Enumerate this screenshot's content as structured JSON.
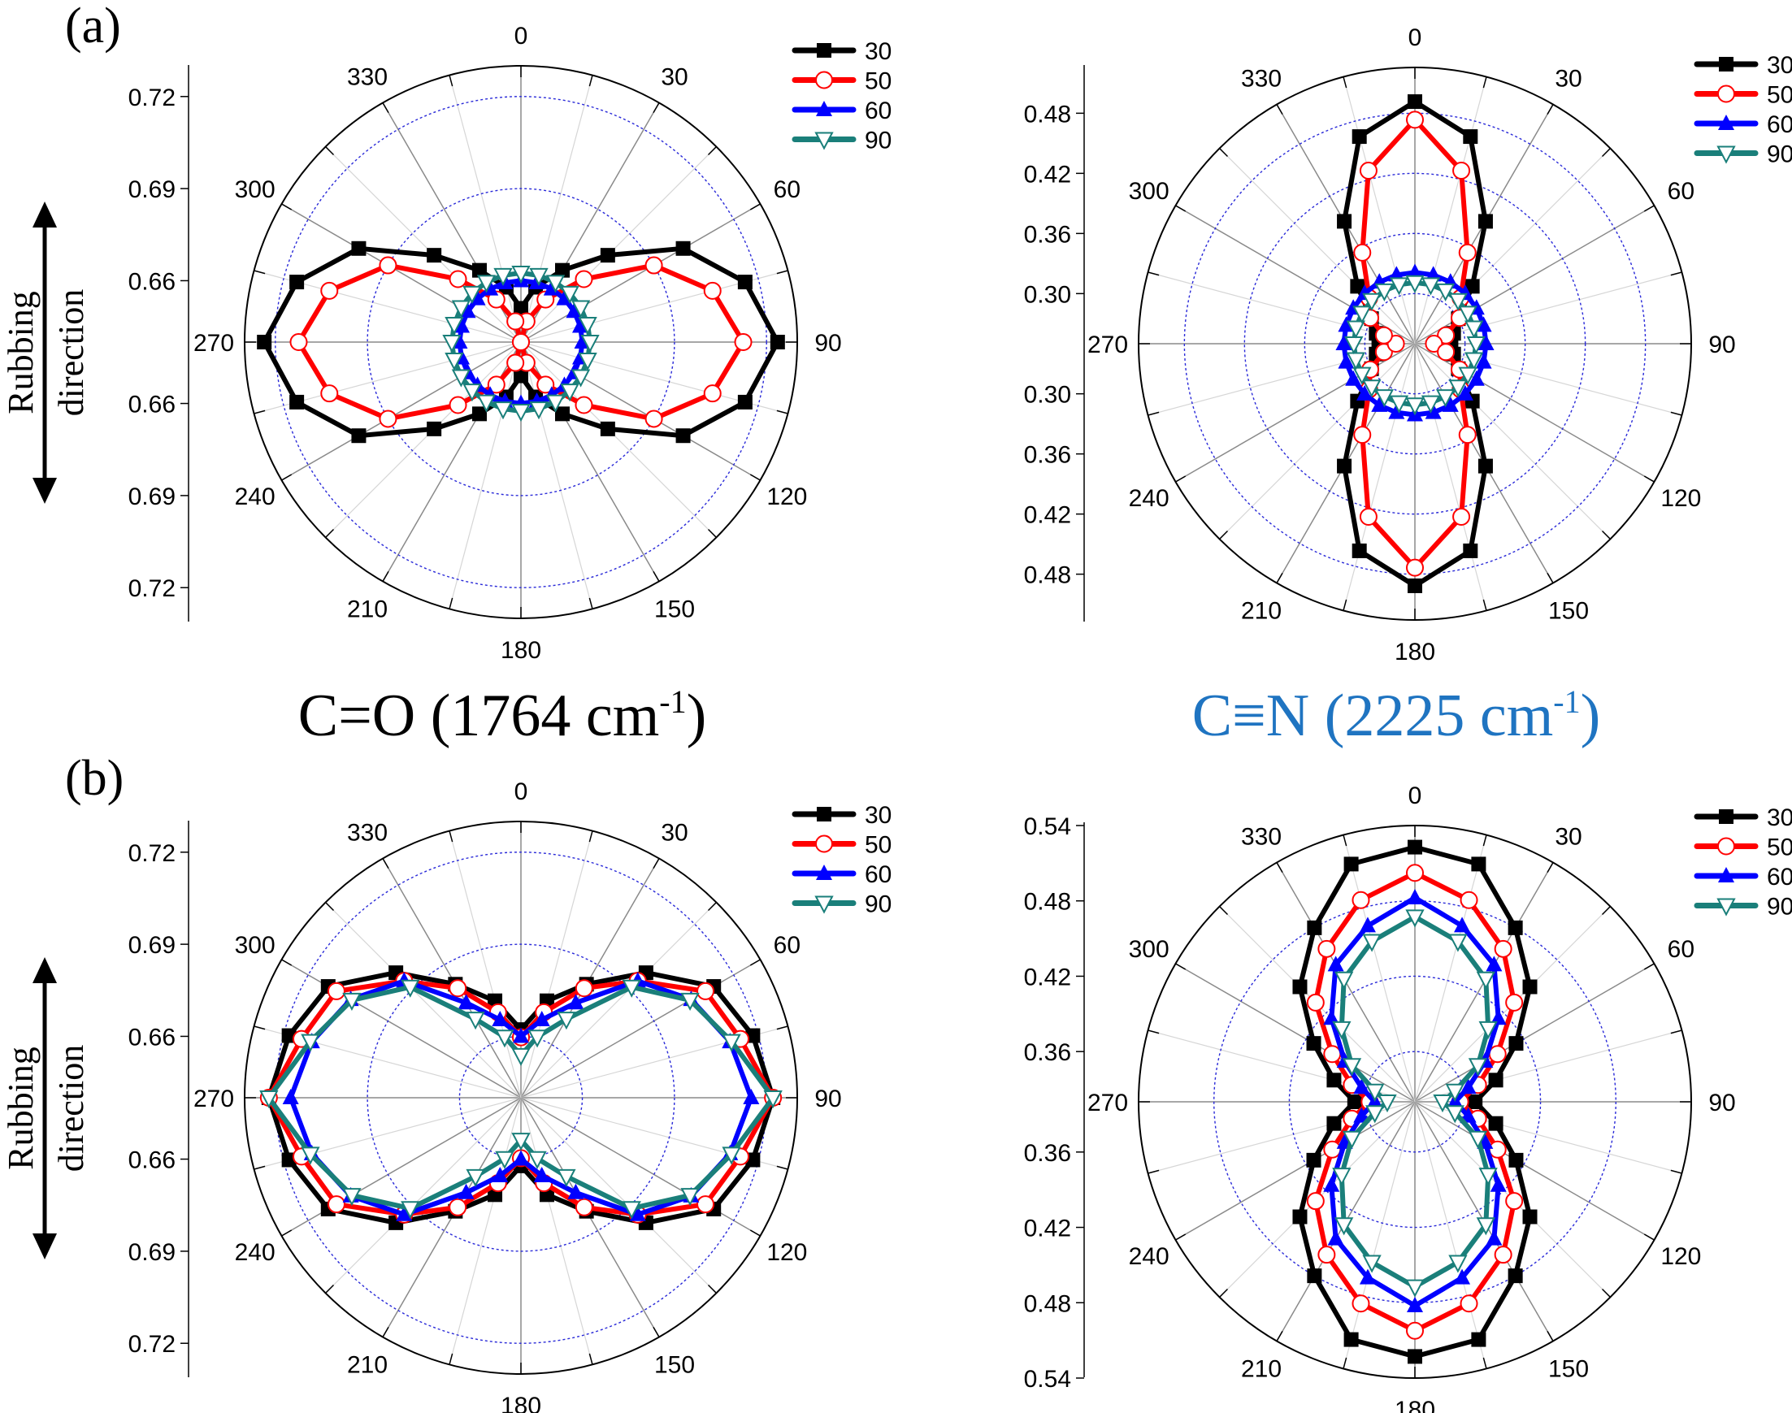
{
  "figure": {
    "panel_labels": [
      "(a)",
      "(b)"
    ],
    "titles": [
      {
        "text": "C=O (1764 cm",
        "sup": "-1",
        "close": ")",
        "color": "#000000"
      },
      {
        "text": "C≡N (2225 cm",
        "sup": "-1",
        "close": ")",
        "color": "#1f74c1"
      }
    ],
    "rubbing_label": [
      "Rubbing",
      "direction"
    ],
    "angle_labels": [
      "0",
      "30",
      "60",
      "90",
      "120",
      "150",
      "180",
      "210",
      "240",
      "270",
      "300",
      "330"
    ],
    "legend": [
      {
        "name": "30",
        "color": "#000000",
        "marker": "square"
      },
      {
        "name": "50",
        "color": "#ff0000",
        "marker": "circle-open"
      },
      {
        "name": "60",
        "color": "#0000ff",
        "marker": "triangle-up"
      },
      {
        "name": "90",
        "color": "#1a7f7a",
        "marker": "triangle-down-open"
      }
    ]
  },
  "chart_data": [
    {
      "id": "a-left",
      "type": "polar-line",
      "panel": "(a)",
      "band": "C=O (1764 cm-1)",
      "angles_deg": [
        0,
        15,
        30,
        45,
        60,
        75,
        90,
        105,
        120,
        135,
        150,
        165,
        180,
        195,
        210,
        225,
        240,
        255,
        270,
        285,
        300,
        315,
        330,
        345
      ],
      "symmetry": "mirror across 0-180 and 90-270 axes",
      "radial_range": [
        0.64,
        0.73
      ],
      "radial_ticks_left_axis": [
        "0.72",
        "0.69",
        "0.66",
        "0.66",
        "0.69",
        "0.72"
      ],
      "radial_gridlines": [
        0.66,
        0.69,
        0.72
      ],
      "series": [
        {
          "name": "30",
          "quadrant_values": [
            0.651,
            0.6585,
            0.667,
            0.68,
            0.701,
            0.7156,
            0.7236
          ]
        },
        {
          "name": "50",
          "quadrant_values": [
            0.64,
            0.647,
            0.656,
            0.669,
            0.69,
            0.7046,
            0.7124
          ]
        },
        {
          "name": "60",
          "quadrant_values": [
            0.66,
            0.66,
            0.66,
            0.66,
            0.66,
            0.66,
            0.66
          ]
        },
        {
          "name": "90",
          "quadrant_values": [
            0.6625,
            0.6625,
            0.6625,
            0.6625,
            0.6625,
            0.6625,
            0.6625
          ]
        }
      ]
    },
    {
      "id": "a-right",
      "type": "polar-line",
      "panel": "(a)",
      "band": "C≡N (2225 cm-1)",
      "angles_deg": [
        0,
        15,
        30,
        45,
        60,
        75,
        90,
        105,
        120,
        135,
        150,
        165,
        180,
        195,
        210,
        225,
        240,
        255,
        270,
        285,
        300,
        315,
        330,
        345
      ],
      "symmetry": "mirror across 0-180 and 90-270 axes",
      "radial_range": [
        0.25,
        0.5257
      ],
      "radial_ticks_left_axis": [
        "0.48",
        "0.42",
        "0.36",
        "0.30",
        "0.30",
        "0.36",
        "0.42",
        "0.48"
      ],
      "radial_gridlines": [
        0.3,
        0.36,
        0.42,
        0.48
      ],
      "series": [
        {
          "name": "30",
          "quadrant_values": [
            0.4916,
            0.464,
            0.391,
            0.331,
            0.3,
            0.29,
            0.286
          ]
        },
        {
          "name": "50",
          "quadrant_values": [
            0.4735,
            0.4288,
            0.355,
            0.3145,
            0.3015,
            0.282,
            0.269
          ]
        },
        {
          "name": "60",
          "quadrant_values": [
            0.321,
            0.321,
            0.321,
            0.321,
            0.321,
            0.321,
            0.321
          ]
        },
        {
          "name": "90",
          "quadrant_values": [
            0.311,
            0.311,
            0.311,
            0.311,
            0.311,
            0.311,
            0.311
          ]
        }
      ]
    },
    {
      "id": "b-left",
      "type": "polar-line",
      "panel": "(b)",
      "band": "C=O (1764 cm-1)",
      "angles_deg": [
        0,
        15,
        30,
        45,
        60,
        75,
        90,
        105,
        120,
        135,
        150,
        165,
        180,
        195,
        210,
        225,
        240,
        255,
        270,
        285,
        300,
        315,
        330,
        345
      ],
      "symmetry": "mirror across 0-180 and 90-270 axes",
      "radial_range": [
        0.64,
        0.73
      ],
      "radial_ticks_left_axis": [
        "0.72",
        "0.69",
        "0.66",
        "0.66",
        "0.69",
        "0.72"
      ],
      "radial_gridlines": [
        0.66,
        0.69,
        0.72
      ],
      "series": [
        {
          "name": "30",
          "quadrant_values": [
            0.6622,
            0.6727,
            0.6827,
            0.6976,
            0.7125,
            0.7182,
            0.7221
          ]
        },
        {
          "name": "50",
          "quadrant_values": [
            0.6597,
            0.6688,
            0.6812,
            0.6938,
            0.7094,
            0.714,
            0.7221
          ]
        },
        {
          "name": "60",
          "quadrant_values": [
            0.66,
            0.6663,
            0.6757,
            0.6938,
            0.704,
            0.7105,
            0.715
          ]
        },
        {
          "name": "90",
          "quadrant_values": [
            0.6538,
            0.6605,
            0.6696,
            0.691,
            0.7036,
            0.711,
            0.7221
          ]
        }
      ]
    },
    {
      "id": "b-right",
      "type": "polar-line",
      "panel": "(b)",
      "band": "C≡N (2225 cm-1)",
      "angles_deg": [
        0,
        15,
        30,
        45,
        60,
        75,
        90,
        105,
        120,
        135,
        150,
        165,
        180,
        195,
        210,
        225,
        240,
        255,
        270,
        285,
        300,
        315,
        330,
        345
      ],
      "symmetry": "mirror across 0-180 and 90-270 axes",
      "radial_range": [
        0.32,
        0.54
      ],
      "radial_ticks_left_axis": [
        "0.54",
        "0.48",
        "0.42",
        "0.36",
        "0.36",
        "0.42",
        "0.48",
        "0.54"
      ],
      "radial_gridlines": [
        0.36,
        0.42,
        0.48
      ],
      "series": [
        {
          "name": "30",
          "quadrant_values": [
            0.5228,
            0.516,
            0.48,
            0.4495,
            0.413,
            0.3867,
            0.368
          ]
        },
        {
          "name": "50",
          "quadrant_values": [
            0.5023,
            0.4863,
            0.4606,
            0.4318,
            0.396,
            0.372,
            0.356
          ]
        },
        {
          "name": "60",
          "quadrant_values": [
            0.4824,
            0.4651,
            0.446,
            0.414,
            0.3845,
            0.364,
            0.352
          ]
        },
        {
          "name": "90",
          "quadrant_values": [
            0.4673,
            0.4523,
            0.433,
            0.4025,
            0.3779,
            0.353,
            0.342
          ]
        }
      ]
    }
  ]
}
